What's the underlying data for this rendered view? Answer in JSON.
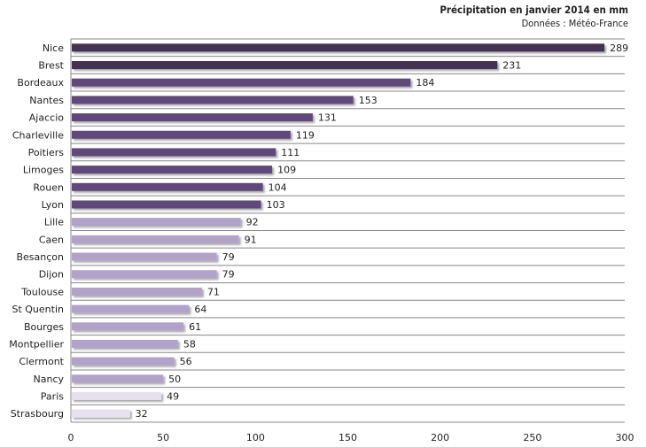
{
  "chart_data": {
    "type": "bar",
    "orientation": "horizontal",
    "title": "Précipitation en janvier 2014  en mm",
    "subtitle": "Données : Météo-France",
    "categories": [
      "Nice",
      "Brest",
      "Bordeaux",
      "Nantes",
      "Ajaccio",
      "Charleville",
      "Poitiers",
      "Limoges",
      "Rouen",
      "Lyon",
      "Lille",
      "Caen",
      "Besançon",
      "Dijon",
      "Toulouse",
      "St Quentin",
      "Bourges",
      "Montpellier",
      "Clermont",
      "Nancy",
      "Paris",
      "Strasbourg"
    ],
    "values": [
      289,
      231,
      184,
      153,
      131,
      119,
      111,
      109,
      104,
      103,
      92,
      91,
      79,
      79,
      71,
      64,
      61,
      58,
      56,
      50,
      49,
      32
    ],
    "xlim": [
      0,
      300
    ],
    "xticks": [
      0,
      50,
      100,
      150,
      200,
      250,
      300
    ],
    "grid": "horizontal row separators",
    "legend": "none",
    "colors": {
      "darkest": "#433352",
      "dark": "#5e4a7a",
      "light": "#b1a2c9",
      "lightest": "#e7e1ef"
    }
  }
}
